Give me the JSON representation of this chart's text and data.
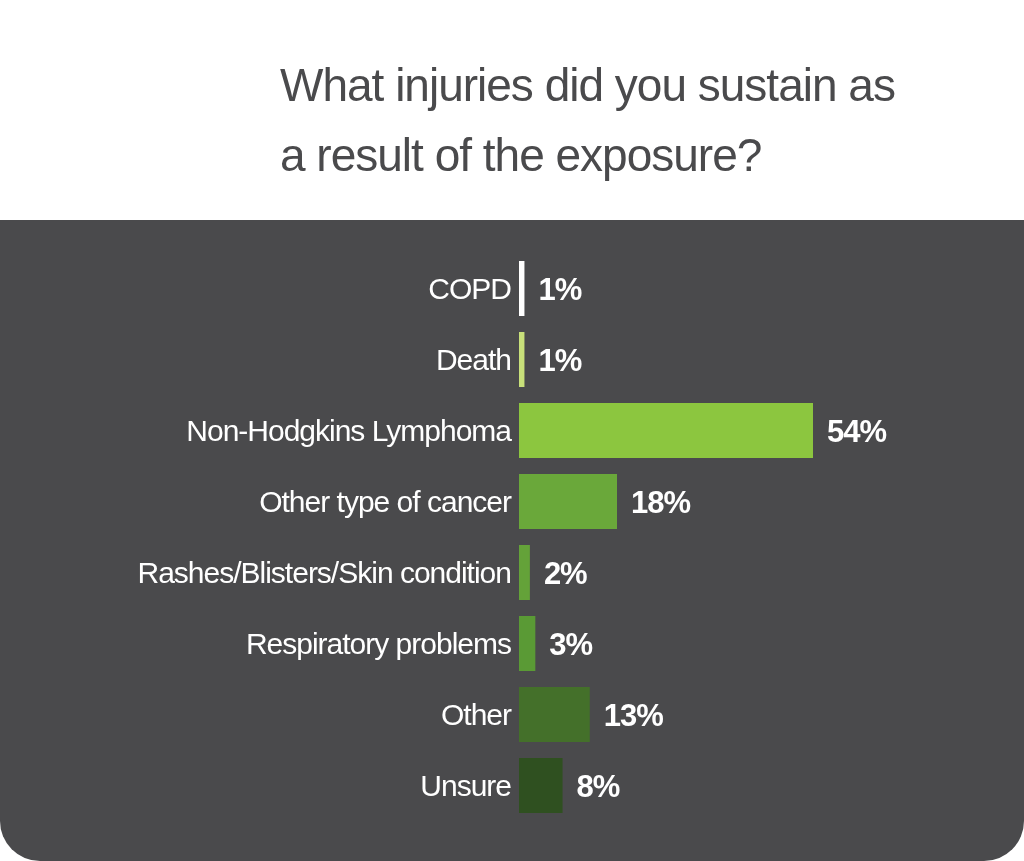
{
  "chart_data": {
    "type": "bar",
    "orientation": "horizontal",
    "title": "What injuries did you sustain as a result of the exposure?",
    "categories": [
      "COPD",
      "Death",
      "Non-Hodgkins Lymphoma",
      "Other type of cancer",
      "Rashes/Blisters/Skin condition",
      "Respiratory problems",
      "Other",
      "Unsure"
    ],
    "values": [
      1,
      1,
      54,
      18,
      2,
      3,
      13,
      8
    ],
    "colors": [
      "#ffffff",
      "#c8e07a",
      "#8cc63f",
      "#6aa83a",
      "#64a239",
      "#5a9a35",
      "#44702a",
      "#2f5020"
    ],
    "value_labels": [
      "1%",
      "1%",
      "54%",
      "18%",
      "2%",
      "3%",
      "13%",
      "8%"
    ]
  }
}
